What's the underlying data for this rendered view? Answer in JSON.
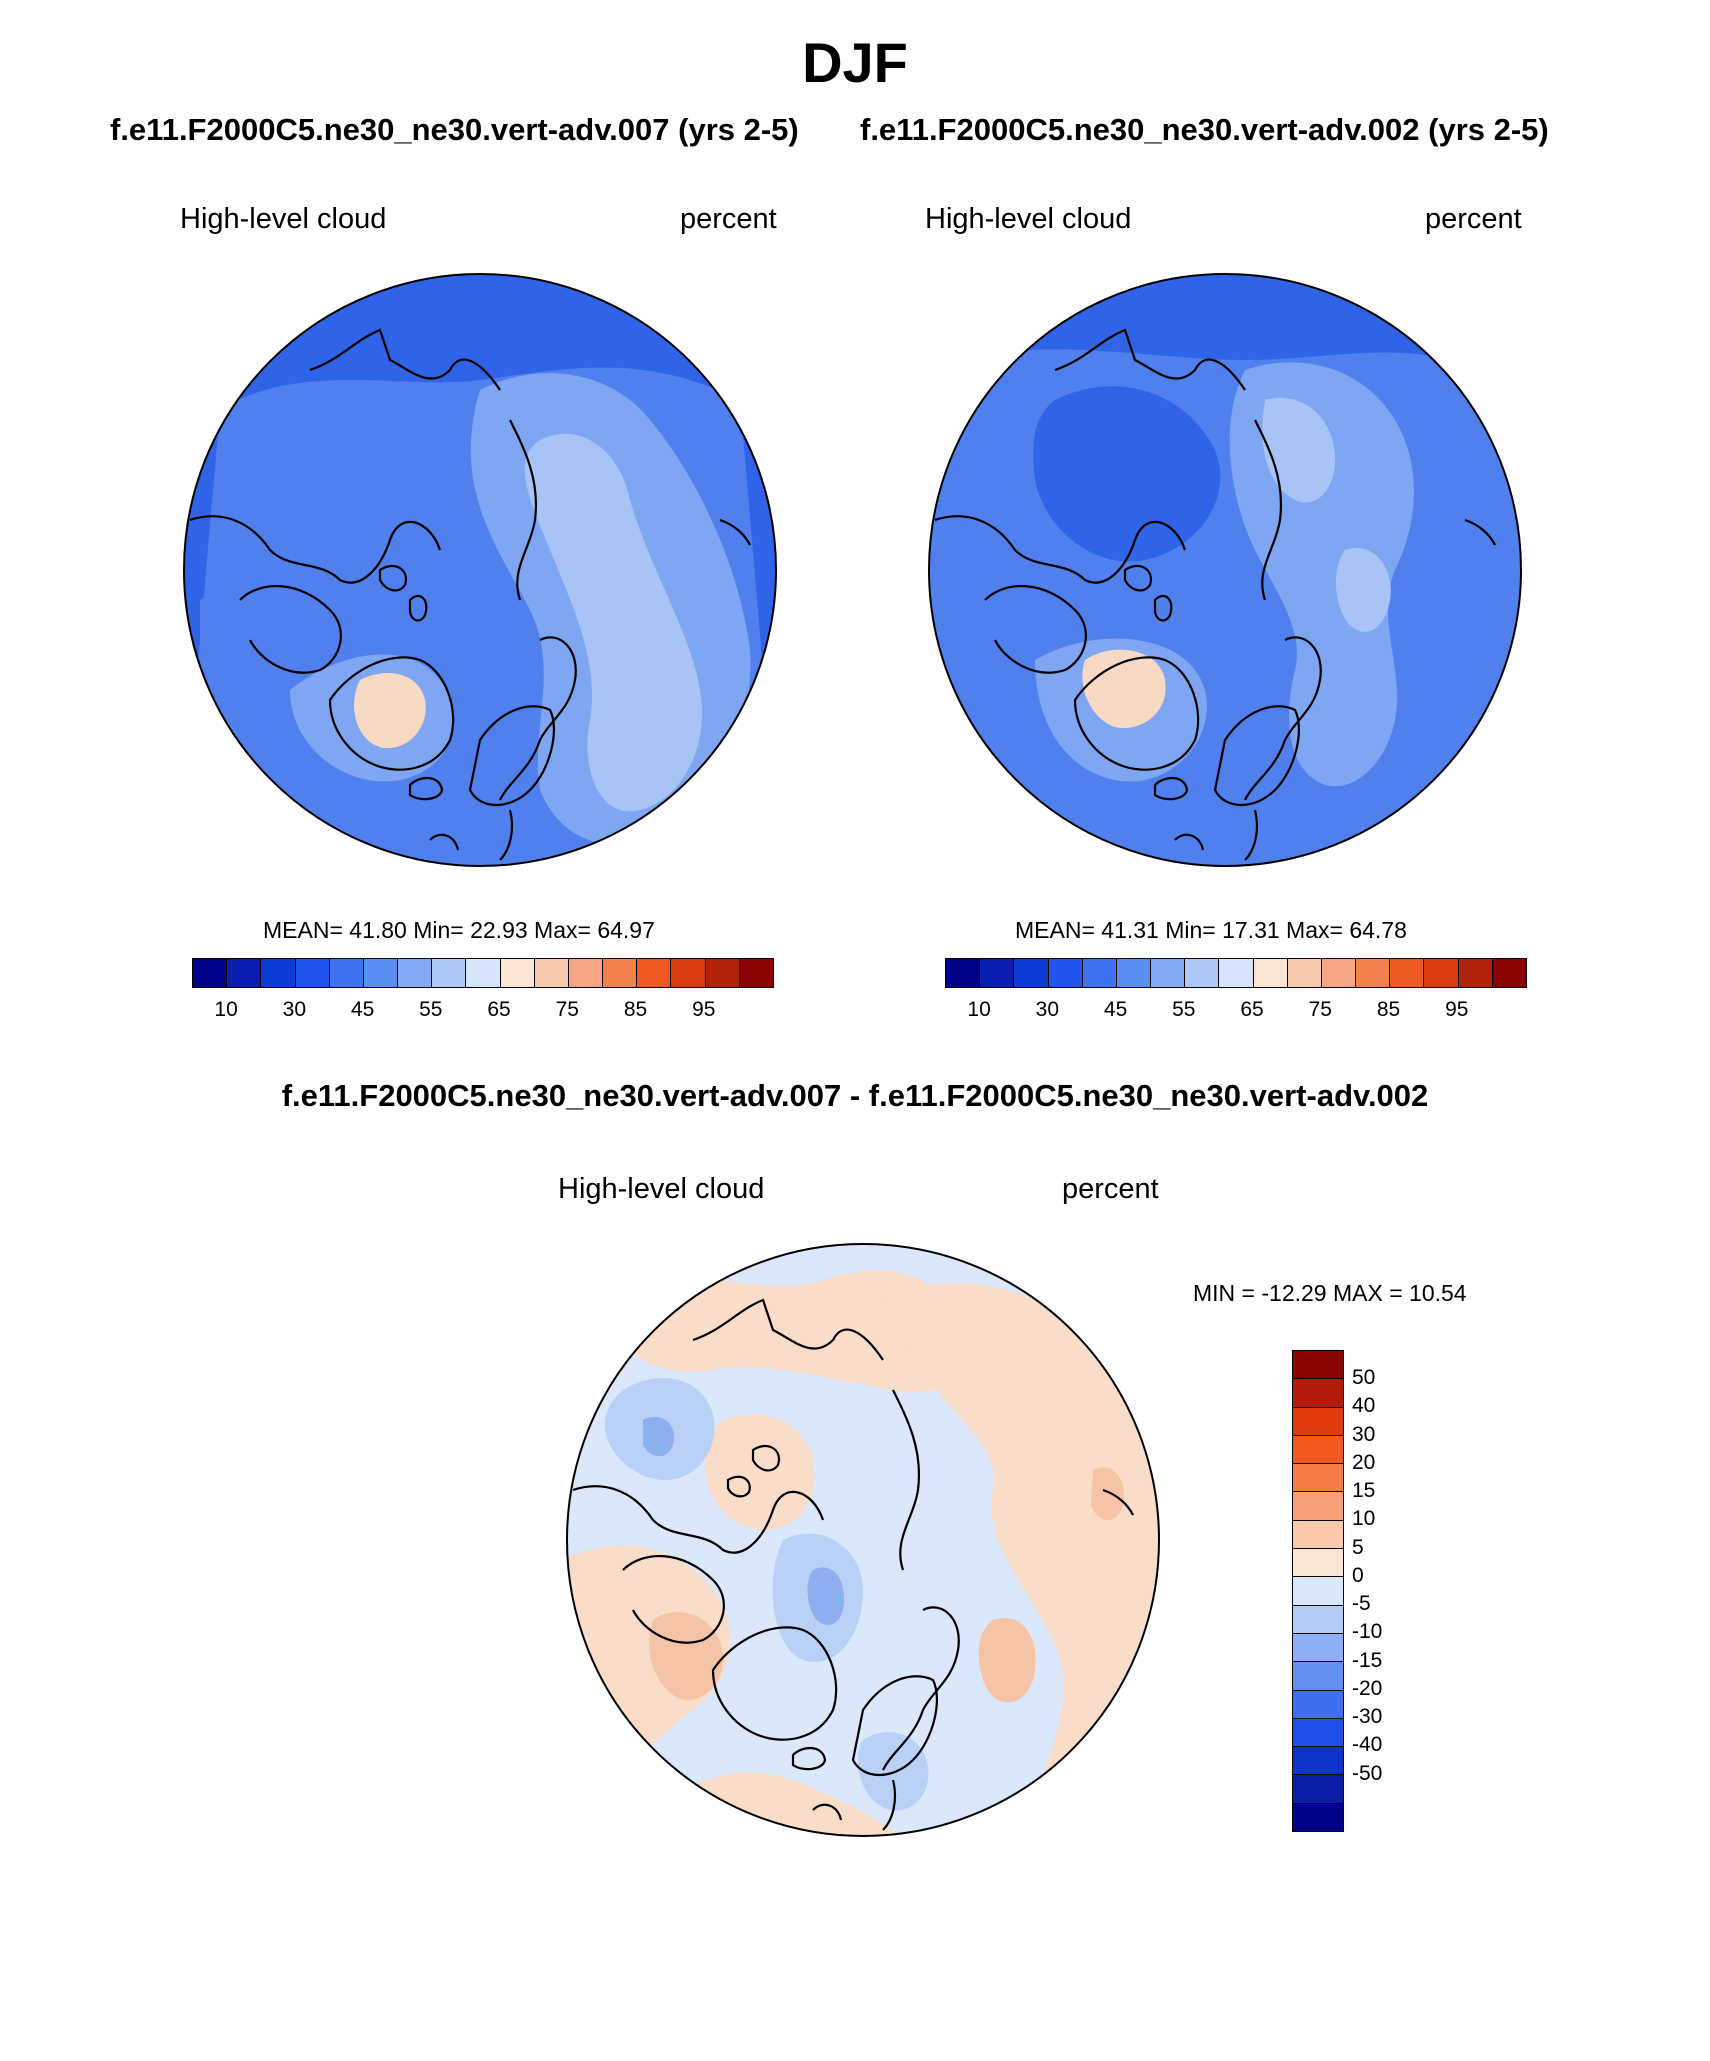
{
  "season": "DJF",
  "top_left": {
    "case_title": "f.e11.F2000C5.ne30_ne30.vert-adv.007 (yrs 2-5)",
    "variable": "High-level cloud",
    "units": "percent",
    "stats": "MEAN=  41.80  Min=  22.93  Max=  64.97",
    "field_values": {
      "mean": 41.8,
      "min": 22.93,
      "max": 64.97
    }
  },
  "top_right": {
    "case_title": "f.e11.F2000C5.ne30_ne30.vert-adv.002 (yrs 2-5)",
    "variable": "High-level cloud",
    "units": "percent",
    "stats": "MEAN=  41.31  Min=  17.31  Max=  64.78",
    "field_values": {
      "mean": 41.31,
      "min": 17.31,
      "max": 64.78
    }
  },
  "difference": {
    "title": "f.e11.F2000C5.ne30_ne30.vert-adv.007 - f.e11.F2000C5.ne30_ne30.vert-adv.002",
    "variable": "High-level cloud",
    "units": "percent",
    "stats": "MIN = -12.29 MAX =  10.54",
    "field_values": {
      "min": -12.29,
      "max": 10.54
    }
  },
  "abs_colorbar": {
    "colors": [
      "#00008b",
      "#0a1fb0",
      "#0d3cd6",
      "#1f55ee",
      "#3d72f0",
      "#5a8ef2",
      "#82aaf5",
      "#adc9f8",
      "#d6e5fb",
      "#fbe6d3",
      "#f8c8ad",
      "#f5a584",
      "#f2804f",
      "#ef5a22",
      "#d83b0e",
      "#b22209",
      "#8b0000"
    ],
    "tick_labels": [
      "10",
      "30",
      "45",
      "55",
      "65",
      "75",
      "85",
      "95"
    ]
  },
  "diff_colorbar": {
    "colors": [
      "#8b0000",
      "#b51b0a",
      "#e03a0b",
      "#f05a1c",
      "#f27d48",
      "#f5a079",
      "#f9c9aa",
      "#fbe6d3",
      "#d9e8fb",
      "#b3cdf8",
      "#8caff5",
      "#658ff2",
      "#3f6ef0",
      "#2050e8",
      "#0e33c8",
      "#0a1fa8",
      "#00008b"
    ],
    "tick_labels": [
      "50",
      "40",
      "30",
      "20",
      "15",
      "10",
      "5",
      "0",
      "-5",
      "-10",
      "-15",
      "-20",
      "-30",
      "-40",
      "-50"
    ]
  },
  "map_colors": {
    "deep": "#2f63e8",
    "mid": "#4f80ee",
    "light": "#7fa6f2",
    "pale": "#a8c4f6",
    "warm": "#f8d9c4",
    "diff_base": "#dbe7fb",
    "diff_warm": "#f9ddc8",
    "diff_warm2": "#f5c3a6",
    "diff_cool": "#b9d0f7",
    "diff_cool2": "#8fb0f0",
    "coast": "#000000"
  }
}
